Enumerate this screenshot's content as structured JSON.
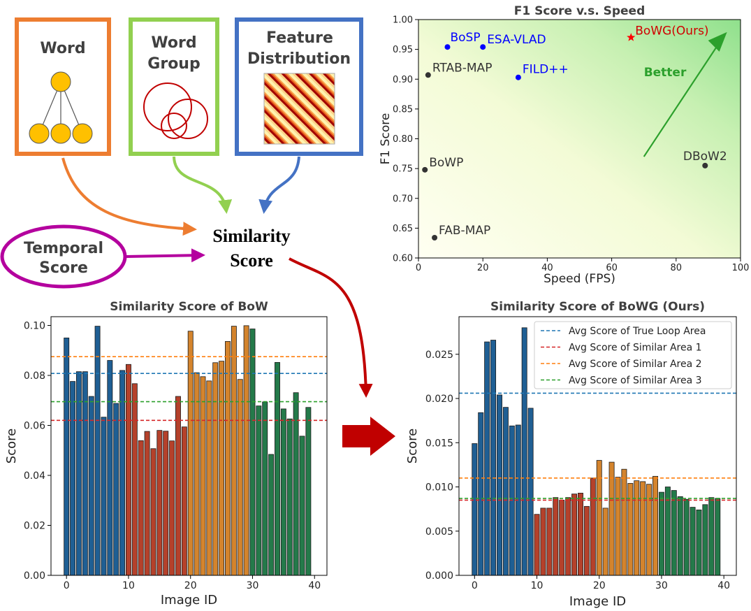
{
  "diagram": {
    "word_box": {
      "label": "Word",
      "color": "#ed7d31"
    },
    "word_group_box": {
      "label_line1": "Word",
      "label_line2": "Group",
      "color": "#92d050"
    },
    "feature_box": {
      "label_line1": "Feature",
      "label_line2": "Distribution",
      "color": "#4472c4"
    },
    "temporal": {
      "label_line1": "Temporal",
      "label_line2": "Score",
      "color": "#b4009e"
    },
    "similarity": {
      "label_line1": "Similarity",
      "label_line2": "Score"
    },
    "arrow_color_red": "#c00000"
  },
  "chart_data": [
    {
      "id": "speed",
      "type": "scatter",
      "title": "F1 Score v.s. Speed",
      "xlabel": "Speed (FPS)",
      "ylabel": "F1 Score",
      "xlim": [
        0,
        100
      ],
      "ylim": [
        0.6,
        1.0
      ],
      "xticks": [
        "0",
        "20",
        "40",
        "60",
        "80",
        "100"
      ],
      "yticks": [
        "0.60",
        "0.65",
        "0.70",
        "0.75",
        "0.80",
        "0.85",
        "0.90",
        "0.95",
        "1.00"
      ],
      "annotation": "Better",
      "annotation_color": "#2ca02c",
      "points": [
        {
          "label": "BoSP",
          "x": 9,
          "y": 0.954,
          "color": "#0000ff",
          "label_color": "#0000ff"
        },
        {
          "label": "ESA-VLAD",
          "x": 20,
          "y": 0.954,
          "color": "#0000ff",
          "label_color": "#0000ff"
        },
        {
          "label": "FILD++",
          "x": 31,
          "y": 0.903,
          "color": "#0000ff",
          "label_color": "#0000ff"
        },
        {
          "label": "RTAB-MAP",
          "x": 3,
          "y": 0.907,
          "color": "#333333",
          "label_color": "#333333"
        },
        {
          "label": "BoWP",
          "x": 2,
          "y": 0.748,
          "color": "#333333",
          "label_color": "#333333"
        },
        {
          "label": "FAB-MAP",
          "x": 5,
          "y": 0.634,
          "color": "#333333",
          "label_color": "#333333"
        },
        {
          "label": "DBoW2",
          "x": 89,
          "y": 0.755,
          "color": "#333333",
          "label_color": "#333333"
        },
        {
          "label": "BoWG(Ours)",
          "x": 66,
          "y": 0.97,
          "color": "#ff0000",
          "label_color": "#d00000",
          "marker": "star"
        }
      ]
    },
    {
      "id": "bow",
      "type": "bar",
      "title": "Similarity Score of BoW",
      "xlabel": "Image ID",
      "ylabel": "Score",
      "xlim": [
        -2.5,
        42
      ],
      "ylim": [
        0,
        0.1035
      ],
      "xticks": [
        "0",
        "10",
        "20",
        "30",
        "40"
      ],
      "yticks": [
        "0.00",
        "0.02",
        "0.04",
        "0.06",
        "0.08",
        "0.10"
      ],
      "values": [
        0.095,
        0.0776,
        0.0815,
        0.0815,
        0.0716,
        0.0997,
        0.0633,
        0.086,
        0.0688,
        0.082,
        0.0844,
        0.0767,
        0.0539,
        0.0576,
        0.0507,
        0.058,
        0.0577,
        0.0538,
        0.0716,
        0.0594,
        0.0977,
        0.0811,
        0.0795,
        0.0778,
        0.0851,
        0.0857,
        0.0936,
        0.0997,
        0.0784,
        0.0999,
        0.0986,
        0.0678,
        0.0694,
        0.0484,
        0.0852,
        0.0666,
        0.0626,
        0.0731,
        0.0557,
        0.0672
      ],
      "avg_lines": [
        0.0808,
        0.062,
        0.0875,
        0.0695
      ]
    },
    {
      "id": "bowg",
      "type": "bar",
      "title": "Similarity Score of BoWG (Ours)",
      "xlabel": "Image ID",
      "ylabel": "Score",
      "xlim": [
        -2.5,
        42
      ],
      "ylim": [
        0,
        0.02925
      ],
      "xticks": [
        "0",
        "10",
        "20",
        "30",
        "40"
      ],
      "yticks": [
        "0.000",
        "0.005",
        "0.010",
        "0.015",
        "0.020",
        "0.025"
      ],
      "values": [
        0.0149,
        0.0184,
        0.0264,
        0.0266,
        0.0204,
        0.019,
        0.0169,
        0.017,
        0.028,
        0.0189,
        0.0069,
        0.0076,
        0.0076,
        0.0088,
        0.0085,
        0.0088,
        0.0092,
        0.0093,
        0.0078,
        0.011,
        0.013,
        0.0076,
        0.0128,
        0.0111,
        0.012,
        0.0104,
        0.0107,
        0.0106,
        0.0103,
        0.0112,
        0.0094,
        0.01,
        0.0096,
        0.0089,
        0.0086,
        0.0077,
        0.0074,
        0.008,
        0.0088,
        0.0087
      ],
      "avg_lines": [
        0.0206,
        0.0085,
        0.011,
        0.0087
      ],
      "legend": [
        "Avg Score of True Loop Area",
        "Avg Score of Similar Area 1",
        "Avg Score of Similar Area 2",
        "Avg Score of Similar Area 3"
      ],
      "legend_position": "top-right"
    }
  ],
  "group_colors": [
    "#1f5f94",
    "#b5412b",
    "#d4842d",
    "#247a4a"
  ],
  "avg_line_colors": [
    "#1f77b4",
    "#d62728",
    "#ff7f0e",
    "#2ca02c"
  ]
}
